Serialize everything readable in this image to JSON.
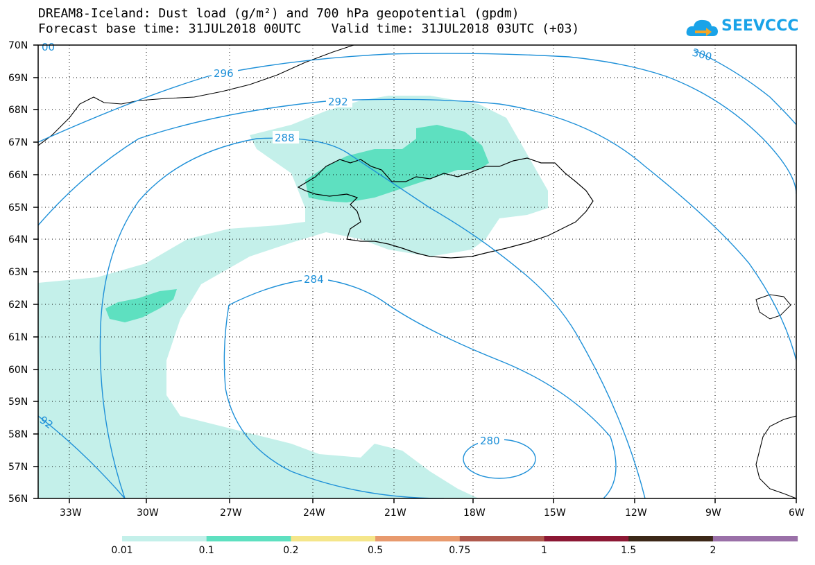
{
  "header": {
    "title_line1": "DREAM8-Iceland: Dust load (g/m²) and 700 hPa geopotential (gpdm)",
    "title_line2": "Forecast base time: 31JUL2018 00UTC    Valid time: 31JUL2018 03UTC (+03)"
  },
  "logo": {
    "text": "SEEVCCC",
    "color": "#1aa3e8",
    "icon": "cloud-arrow-icon"
  },
  "map": {
    "lat_labels": [
      "70N",
      "69N",
      "68N",
      "67N",
      "66N",
      "65N",
      "64N",
      "63N",
      "62N",
      "61N",
      "60N",
      "59N",
      "58N",
      "57N",
      "56N"
    ],
    "lon_labels": [
      "33W",
      "30W",
      "27W",
      "24W",
      "21W",
      "18W",
      "15W",
      "12W",
      "9W",
      "6W"
    ],
    "contour_color": "#1e90d8",
    "contour_labels": [
      "296",
      "292",
      "288",
      "284",
      "280",
      "300",
      "92",
      "00"
    ]
  },
  "legend": {
    "colors": [
      "#c4f0ea",
      "#5ee0c0",
      "#f5e68a",
      "#e89a6e",
      "#b05a4e",
      "#8c1834",
      "#3c2818",
      "#9a70a8"
    ],
    "labels": [
      "0.01",
      "0.1",
      "0.2",
      "0.5",
      "0.75",
      "1",
      "1.5",
      "2"
    ]
  }
}
